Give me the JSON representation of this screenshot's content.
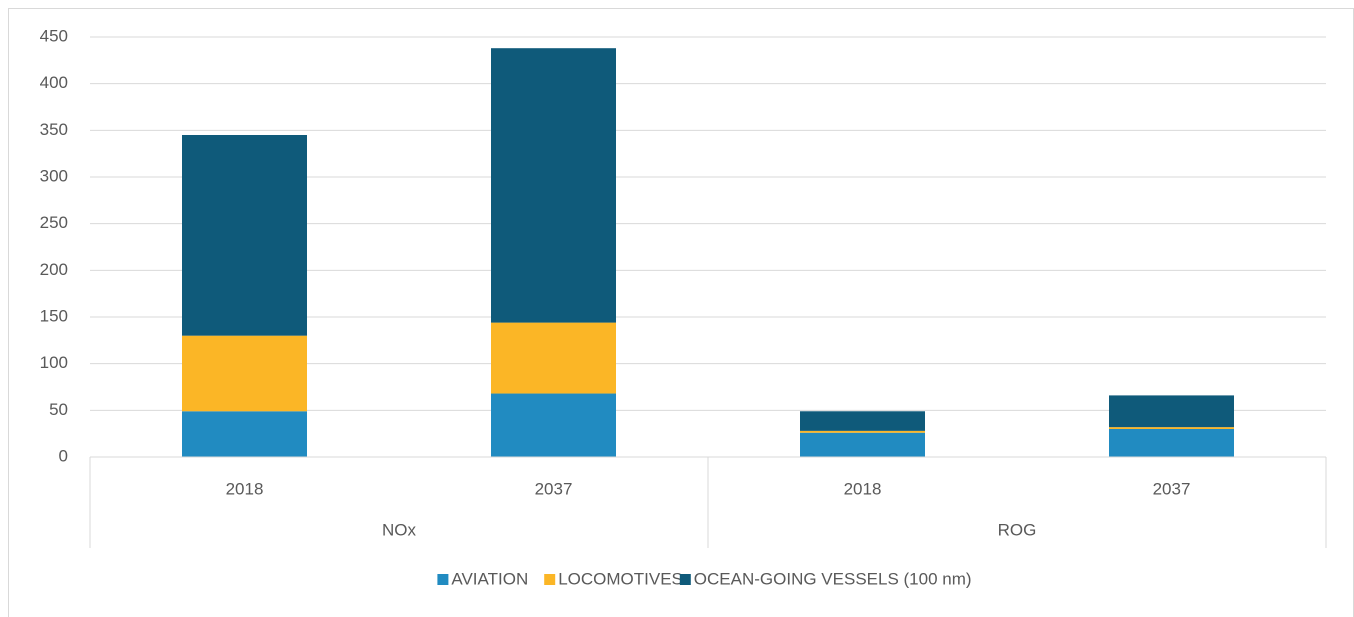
{
  "chart_data": {
    "type": "stacked_bar",
    "categories": [
      "2018",
      "2037",
      "2018",
      "2037"
    ],
    "groups": [
      "NOx",
      "ROG"
    ],
    "series": [
      {
        "name": "AVIATION",
        "color": "#218bc1",
        "values": [
          49,
          68,
          26,
          30
        ]
      },
      {
        "name": "LOCOMOTIVES",
        "color": "#fbb626",
        "values": [
          81,
          76,
          2,
          2
        ]
      },
      {
        "name": "OCEAN-GOING VESSELS (100 nm)",
        "color": "#0f5a7a",
        "values": [
          215,
          294,
          21,
          34
        ]
      }
    ],
    "ylim": [
      0,
      450
    ],
    "yticks": [
      0,
      50,
      100,
      150,
      200,
      250,
      300,
      350,
      400,
      450
    ],
    "grid": true
  }
}
